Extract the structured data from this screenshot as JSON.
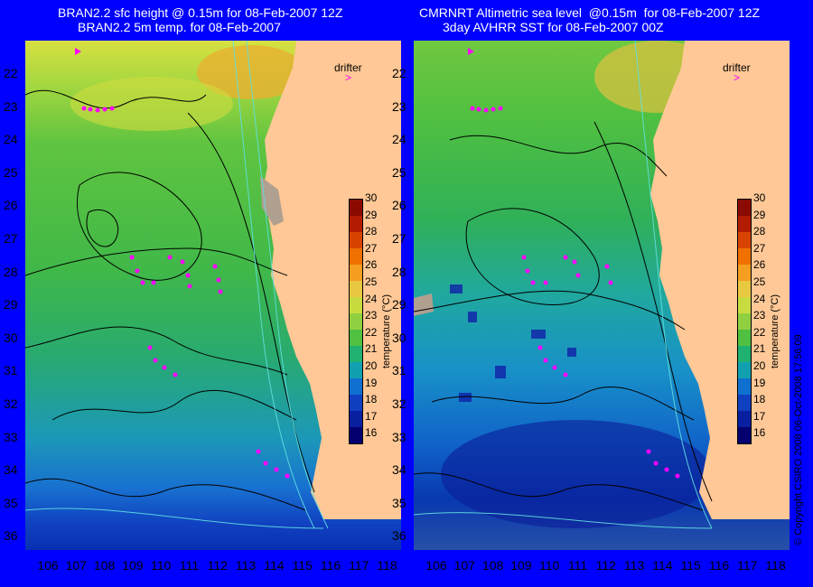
{
  "left_panel": {
    "title_line1": "BRAN2.2 sfc height @ 0.15m for 08-Feb-2007 12Z",
    "title_line2": "BRAN2.2 5m temp. for 08-Feb-2007"
  },
  "right_panel": {
    "title_line1": "CMRNRT Altimetric sea level  @0.15m  for 08-Feb-2007 12Z",
    "title_line2": "3day AVHRR SST for 08-Feb-2007 00Z"
  },
  "y_ticks": [
    "22",
    "23",
    "24",
    "25",
    "26",
    "27",
    "28",
    "29",
    "30",
    "31",
    "32",
    "33",
    "34",
    "35",
    "36"
  ],
  "x_ticks": [
    "106",
    "107",
    "108",
    "109",
    "110",
    "111",
    "112",
    "113",
    "114",
    "115",
    "116",
    "117",
    "118"
  ],
  "colorbar": {
    "ticks": [
      "30",
      "29",
      "28",
      "27",
      "26",
      "25",
      "24",
      "23",
      "22",
      "21",
      "20",
      "19",
      "18",
      "17",
      "16"
    ],
    "label": "temperature (°C)",
    "colors": [
      "#8b0a00",
      "#b31c00",
      "#d84400",
      "#f07000",
      "#f59e20",
      "#e8c840",
      "#c8dc40",
      "#90d040",
      "#50c040",
      "#20b070",
      "#10a0b0",
      "#1070d0",
      "#1040c0",
      "#0820a0",
      "#050070"
    ]
  },
  "legend": {
    "drifter_label": "drifter",
    "drifter_color": "#ff00ff"
  },
  "land_color": "#ffc896",
  "copyright": "© Copyright CSIRO 2008    06-Oct-2008 17:56:09"
}
